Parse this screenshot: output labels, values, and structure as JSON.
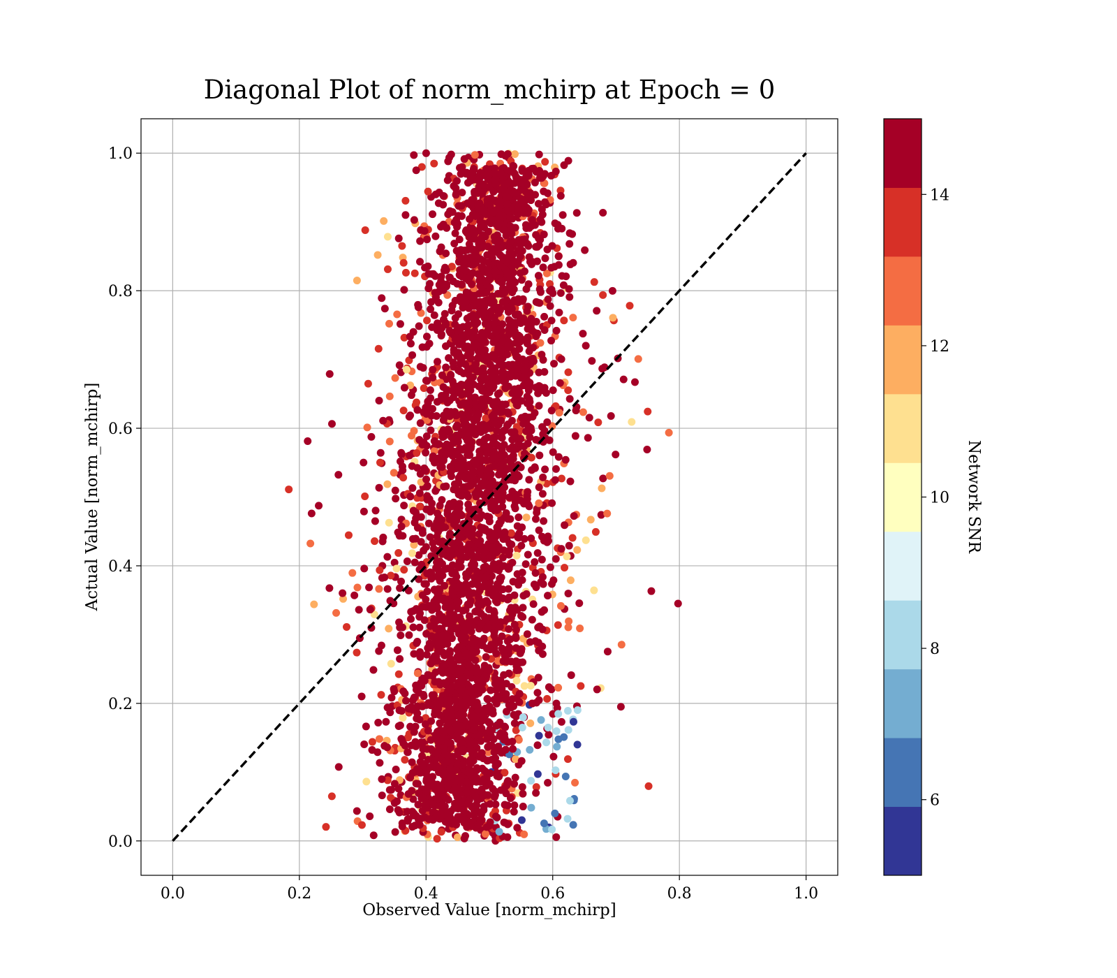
{
  "chart_data": {
    "type": "scatter",
    "title": "Diagonal Plot of norm_mchirp at Epoch = 0",
    "xlabel": "Observed Value [norm_mchirp]",
    "ylabel": "Actual Value [norm_mchirp]",
    "xlim": [
      -0.05,
      1.05
    ],
    "ylim": [
      -0.05,
      1.05
    ],
    "xticks": [
      "0.0",
      "0.2",
      "0.4",
      "0.6",
      "0.8",
      "1.0"
    ],
    "yticks": [
      "0.0",
      "0.2",
      "0.4",
      "0.6",
      "0.8",
      "1.0"
    ],
    "grid": true,
    "reference_line": {
      "style": "dashed",
      "color": "#000000",
      "from": [
        0,
        0
      ],
      "to": [
        1,
        1
      ]
    },
    "colorbar": {
      "label": "Network SNR",
      "range": [
        5,
        15
      ],
      "ticks": [
        "6",
        "8",
        "10",
        "12",
        "14"
      ],
      "colors": [
        "#313695",
        "#4575b4",
        "#74add1",
        "#abd9e9",
        "#e0f3f8",
        "#ffffbf",
        "#fee090",
        "#fdae61",
        "#f46d43",
        "#d73027",
        "#a50026"
      ]
    },
    "point_colors": [
      "#a50026",
      "#d73027",
      "#f46d43",
      "#fdae61",
      "#fee090",
      "#abd9e9",
      "#74add1",
      "#4575b4",
      "#313695"
    ],
    "cloud": {
      "x_center": 0.48,
      "x_spread": 0.07,
      "y_range": [
        0.0,
        1.0
      ]
    }
  }
}
